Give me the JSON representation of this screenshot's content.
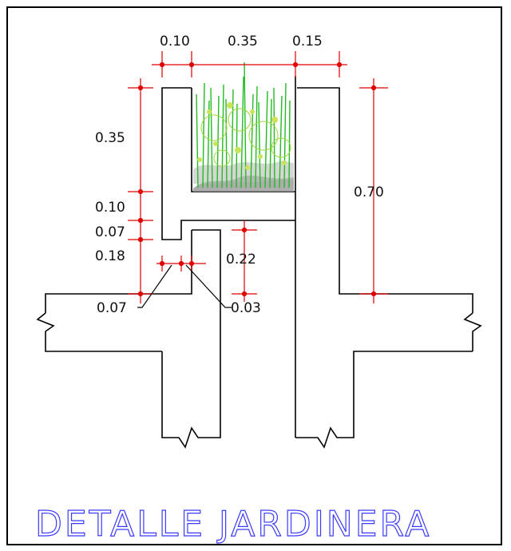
{
  "title": "DETALLE JARDINERA",
  "colors": {
    "outline": "#000000",
    "dimension": "#e00000",
    "title": "#3a3aff",
    "plant": "#22bb22",
    "soil": "#888888"
  },
  "dimensions": {
    "top_left": "0.10",
    "top_middle": "0.35",
    "top_right": "0.15",
    "left_planter_height": "0.35",
    "left_slab": "0.10",
    "left_gap": "0.07",
    "left_lip": "0.18",
    "center_height": "0.22",
    "right_height": "0.70",
    "leader_left": "0.07",
    "leader_right": "0.03"
  }
}
